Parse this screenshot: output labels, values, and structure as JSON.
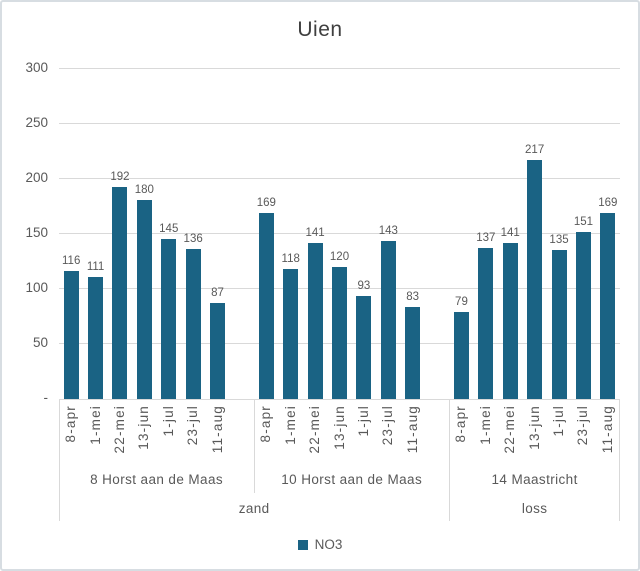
{
  "chart": {
    "title": "Uien",
    "legend": {
      "label": "NO3"
    }
  },
  "chart_data": {
    "type": "bar",
    "title": "Uien",
    "xlabel": "",
    "ylabel": "",
    "ylim": [
      0,
      300
    ],
    "ytick_step": 50,
    "ytick_labels": [
      "300",
      "250",
      "200",
      "150",
      "100",
      "50",
      "-"
    ],
    "grid": true,
    "categories": [
      "8-apr",
      "1-mei",
      "22-mei",
      "13-jun",
      "1-jul",
      "23-jul",
      "11-aug"
    ],
    "series_name": "NO3",
    "groups": [
      {
        "label": "8 Horst aan de Maas",
        "soil": "zand",
        "values": [
          116,
          111,
          192,
          180,
          145,
          136,
          87
        ]
      },
      {
        "label": "10 Horst aan de Maas",
        "soil": "zand",
        "values": [
          169,
          118,
          141,
          120,
          93,
          143,
          83
        ]
      },
      {
        "label": "14 Maastricht",
        "soil": "loss",
        "values": [
          79,
          137,
          141,
          217,
          135,
          151,
          169
        ]
      }
    ],
    "soil_groups": [
      {
        "label": "zand",
        "span": 2
      },
      {
        "label": "loss",
        "span": 1
      }
    ],
    "legend": [
      "NO3"
    ],
    "legend_position": "bottom",
    "colors": {
      "bar": "#1A6384",
      "grid": "#D9D9D9",
      "text": "#595959",
      "title": "#3f3f3f",
      "frame_border": "#D7DDE2"
    }
  }
}
